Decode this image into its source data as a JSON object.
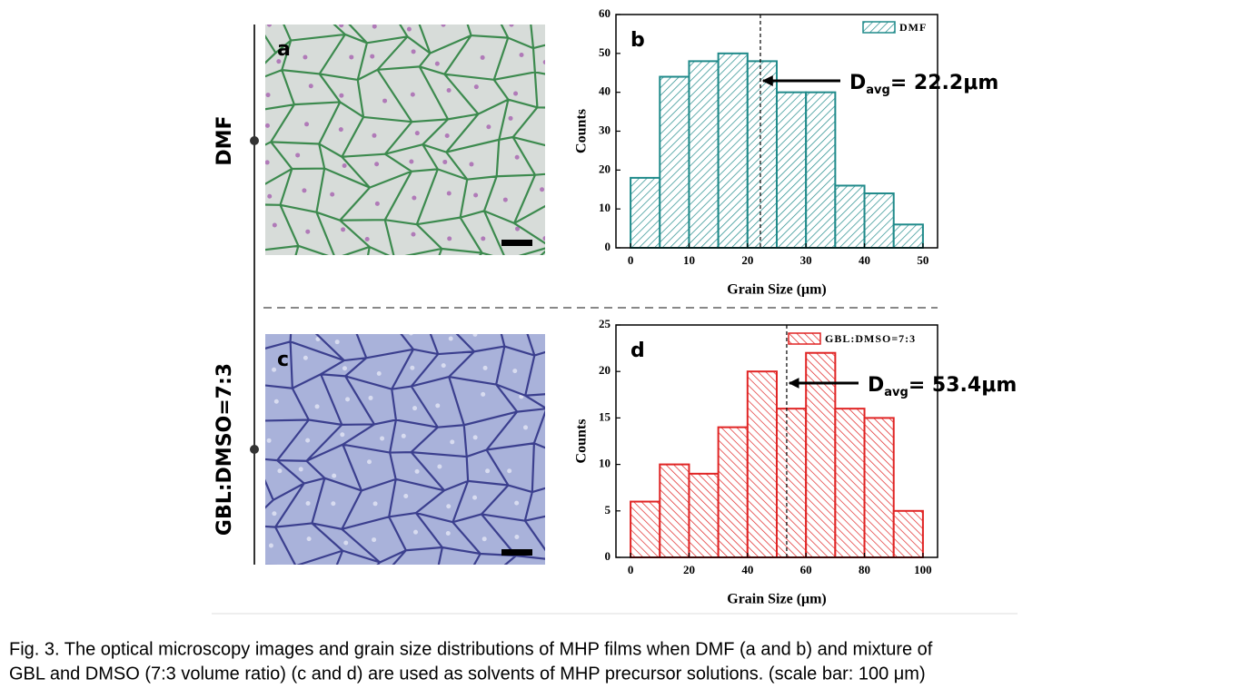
{
  "chart_data": [
    {
      "type": "histogram",
      "panel_label": "b",
      "bins": [
        0,
        5,
        10,
        15,
        20,
        25,
        30,
        35,
        40,
        45,
        50
      ],
      "series": [
        {
          "name": "DMF",
          "color": "#1f8a8a",
          "values": [
            18,
            44,
            48,
            50,
            48,
            40,
            40,
            16,
            14,
            6
          ]
        }
      ],
      "xlabel": "Grain Size (μm)",
      "ylabel": "Counts",
      "xlim": [
        -2.5,
        52.5
      ],
      "xticks": [
        0,
        10,
        20,
        30,
        40,
        50
      ],
      "ylim": [
        0,
        60
      ],
      "yticks": [
        0,
        10,
        20,
        30,
        40,
        50,
        60
      ],
      "mean_line": 22.2,
      "annotation": [
        "D",
        "avg",
        "= 22.2μm"
      ]
    },
    {
      "type": "histogram",
      "panel_label": "d",
      "bins": [
        0,
        10,
        20,
        30,
        40,
        50,
        60,
        70,
        80,
        90,
        100
      ],
      "series": [
        {
          "name": "GBL:DMSO=7:3",
          "color": "#e02424",
          "values": [
            6,
            10,
            9,
            14,
            20,
            16,
            22,
            16,
            15,
            5
          ]
        }
      ],
      "xlabel": "Grain Size (μm)",
      "ylabel": "Counts",
      "xlim": [
        -5,
        105
      ],
      "xticks": [
        0,
        20,
        40,
        60,
        80,
        100
      ],
      "ylim": [
        0,
        25
      ],
      "yticks": [
        0,
        5,
        10,
        15,
        20,
        25
      ],
      "mean_line": 53.4,
      "annotation": [
        "D",
        "avg",
        "= 53.4μm"
      ]
    }
  ],
  "images": [
    {
      "label": "a"
    },
    {
      "label": "c"
    }
  ],
  "row_labels": [
    "DMF",
    "GBL:DMSO=7:3"
  ],
  "caption": [
    "Fig. 3. The optical microscopy images and grain size distributions of MHP films when DMF (a and b) and mixture of",
    "GBL and DMSO (7:3 volume ratio) (c and d) are used as solvents of MHP precursor solutions. (scale bar: 100 μm)"
  ]
}
